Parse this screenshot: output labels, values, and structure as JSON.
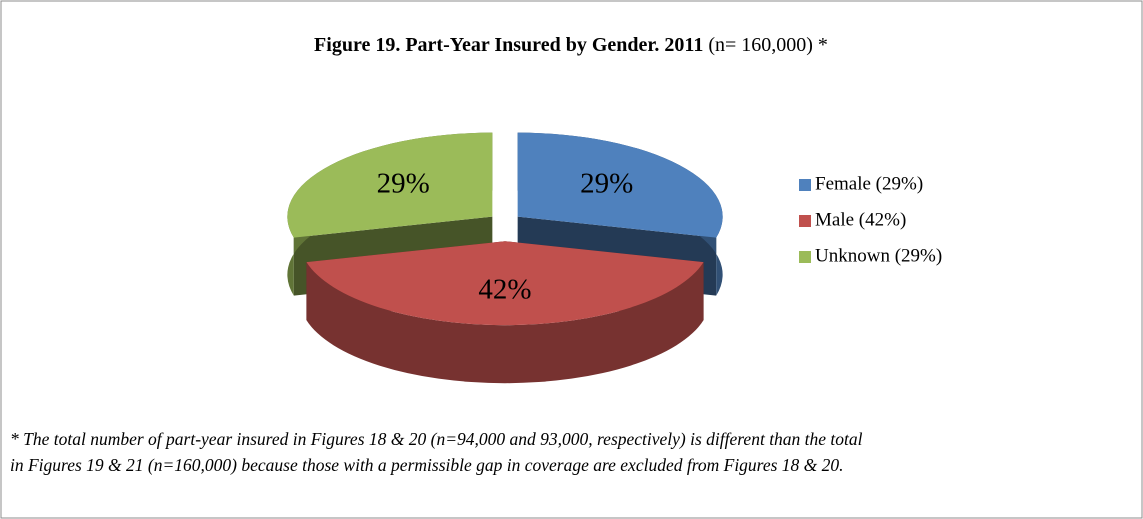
{
  "chart_data": {
    "type": "pie3d",
    "title": "Figure 19. Part-Year Insured by Gender. 2011",
    "subtitle": "(n= 160,000) *",
    "categories": [
      "Female (29%)",
      "Male (42%)",
      "Unknown (29%)"
    ],
    "values": [
      29,
      42,
      29
    ],
    "value_labels": [
      "29%",
      "42%",
      "29%"
    ],
    "colors": [
      "#4f81bd",
      "#c0504d",
      "#9bbb59"
    ],
    "legend": "right",
    "footnote": [
      "* The total number of part-year insured in Figures 18 & 20 (n=94,000 and 93,000, respectively) is different than the total",
      "in Figures 19 & 21 (n=160,000) because those with a permissible gap in coverage are excluded from Figures 18 & 20."
    ]
  }
}
